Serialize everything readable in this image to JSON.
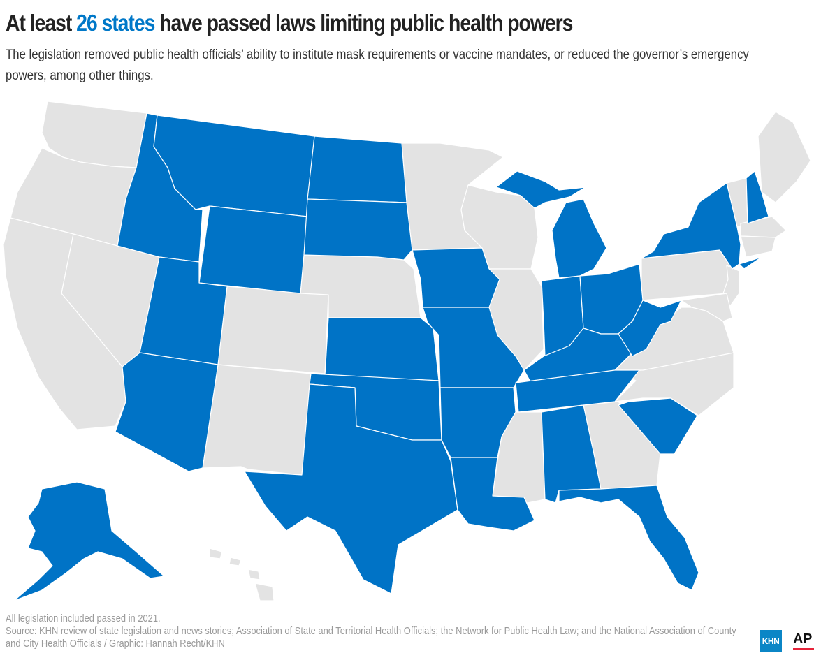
{
  "title": {
    "prefix": "At least ",
    "highlight": "26 states",
    "suffix": " have passed laws limiting public health powers"
  },
  "subtitle": "The legislation removed public health officials’ ability to institute mask requirements or vaccine mandates, or reduced the governor’s emergency powers, among other things.",
  "colors": {
    "passed": "#0073c6",
    "not_passed": "#e3e3e3",
    "title_highlight": "#0078c8"
  },
  "states_passed": [
    "AK",
    "AL",
    "AR",
    "AZ",
    "FL",
    "ID",
    "IN",
    "IA",
    "KS",
    "KY",
    "LA",
    "MI",
    "MO",
    "MT",
    "NH",
    "NY",
    "ND",
    "OH",
    "OK",
    "SC",
    "SD",
    "TN",
    "TX",
    "UT",
    "WV",
    "WY"
  ],
  "states_not_passed": [
    "WA",
    "OR",
    "CA",
    "NV",
    "CO",
    "NM",
    "NE",
    "MN",
    "WI",
    "IL",
    "MS",
    "GA",
    "NC",
    "VA",
    "PA",
    "ME",
    "VT",
    "MA",
    "CT",
    "RI",
    "NJ",
    "DE",
    "MD",
    "HI"
  ],
  "footer": {
    "note": "All legislation included passed in 2021.",
    "source": "Source: KHN review of state legislation and news stories; Association of State and Territorial Health Officials; the Network for Public Health Law; and the National Association of County and City Health Officials / Graphic: Hannah Recht/KHN"
  },
  "logos": {
    "khn": "KHN",
    "ap": "AP"
  }
}
